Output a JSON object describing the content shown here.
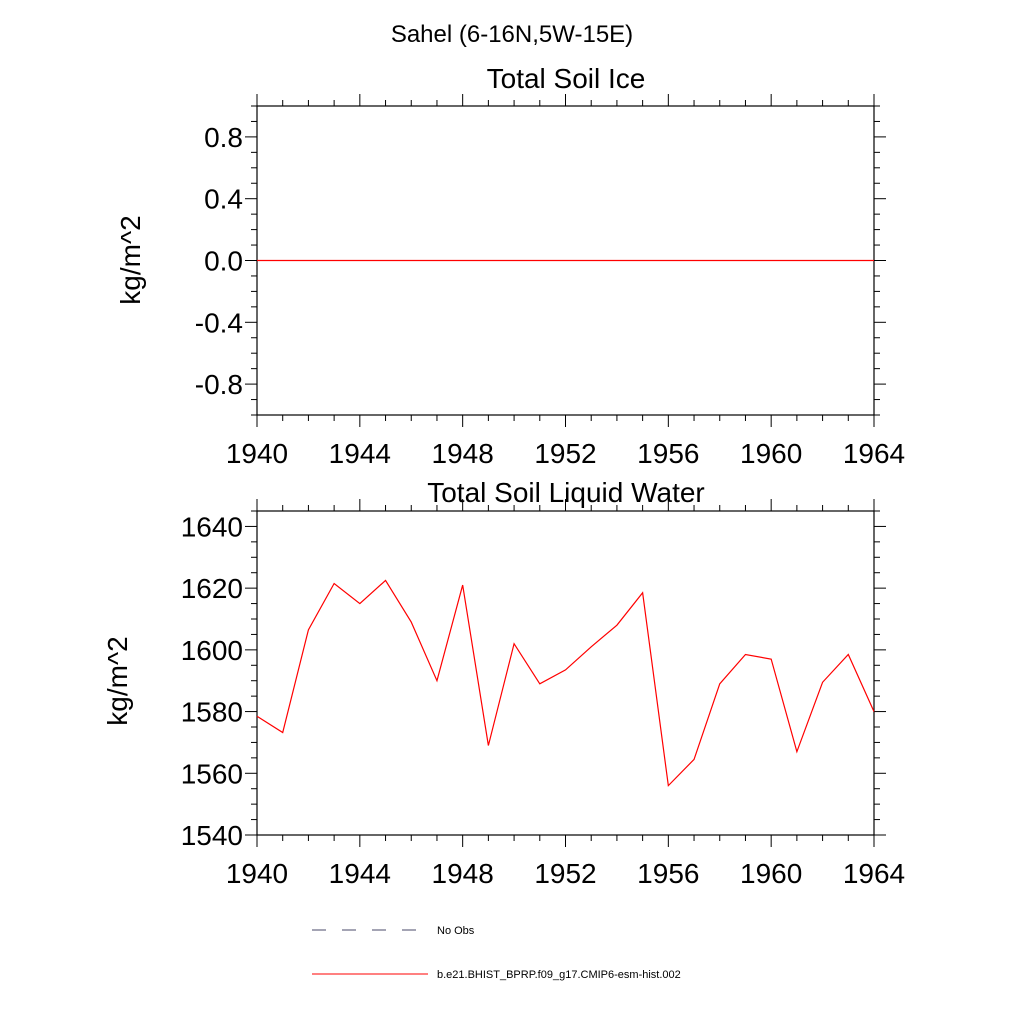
{
  "figure": {
    "region_title": "Sahel (6-16N,5W-15E)",
    "legend": [
      {
        "label": "No Obs",
        "style": "dashed",
        "color": "#4a4a6a"
      },
      {
        "label": "b.e21.BHIST_BPRP.f09_g17.CMIP6-esm-hist.002",
        "style": "solid",
        "color": "#ff0000"
      }
    ]
  },
  "chart_data": [
    {
      "type": "line",
      "title": "Total Soil Ice",
      "xlabel": "",
      "ylabel": "kg/m^2",
      "xlim": [
        1940,
        1964
      ],
      "ylim": [
        -1.0,
        1.0
      ],
      "x_ticks": [
        1940,
        1944,
        1948,
        1952,
        1956,
        1960,
        1964
      ],
      "y_ticks": [
        -0.8,
        -0.4,
        0.0,
        0.4,
        0.8
      ],
      "y_tick_labels": [
        "-0.8",
        "-0.4",
        "0.0",
        "0.4",
        "0.8"
      ],
      "grid": false,
      "series": [
        {
          "color": "#ff0000",
          "x": [
            1940,
            1941,
            1942,
            1943,
            1944,
            1945,
            1946,
            1947,
            1948,
            1949,
            1950,
            1951,
            1952,
            1953,
            1954,
            1955,
            1956,
            1957,
            1958,
            1959,
            1960,
            1961,
            1962,
            1963,
            1964
          ],
          "values": [
            0,
            0,
            0,
            0,
            0,
            0,
            0,
            0,
            0,
            0,
            0,
            0,
            0,
            0,
            0,
            0,
            0,
            0,
            0,
            0,
            0,
            0,
            0,
            0,
            0
          ]
        }
      ]
    },
    {
      "type": "line",
      "title": "Total Soil Liquid Water",
      "xlabel": "",
      "ylabel": "kg/m^2",
      "xlim": [
        1940,
        1964
      ],
      "ylim": [
        1540,
        1645
      ],
      "x_ticks": [
        1940,
        1944,
        1948,
        1952,
        1956,
        1960,
        1964
      ],
      "y_ticks": [
        1540,
        1560,
        1580,
        1600,
        1620,
        1640
      ],
      "y_tick_labels": [
        "1540",
        "1560",
        "1580",
        "1600",
        "1620",
        "1640"
      ],
      "grid": false,
      "series": [
        {
          "color": "#ff0000",
          "x": [
            1940,
            1941,
            1942,
            1943,
            1944,
            1945,
            1946,
            1947,
            1948,
            1949,
            1950,
            1951,
            1952,
            1953,
            1954,
            1955,
            1956,
            1957,
            1958,
            1959,
            1960,
            1961,
            1962,
            1963,
            1964
          ],
          "values": [
            1578.5,
            1573.2,
            1606.5,
            1621.5,
            1615.0,
            1622.5,
            1609.0,
            1590.0,
            1621.0,
            1569.0,
            1602.0,
            1589.0,
            1593.5,
            1601.0,
            1608.0,
            1618.5,
            1556.0,
            1564.5,
            1589.0,
            1598.5,
            1597.0,
            1567.0,
            1589.5,
            1598.5,
            1580.0
          ]
        }
      ]
    }
  ]
}
